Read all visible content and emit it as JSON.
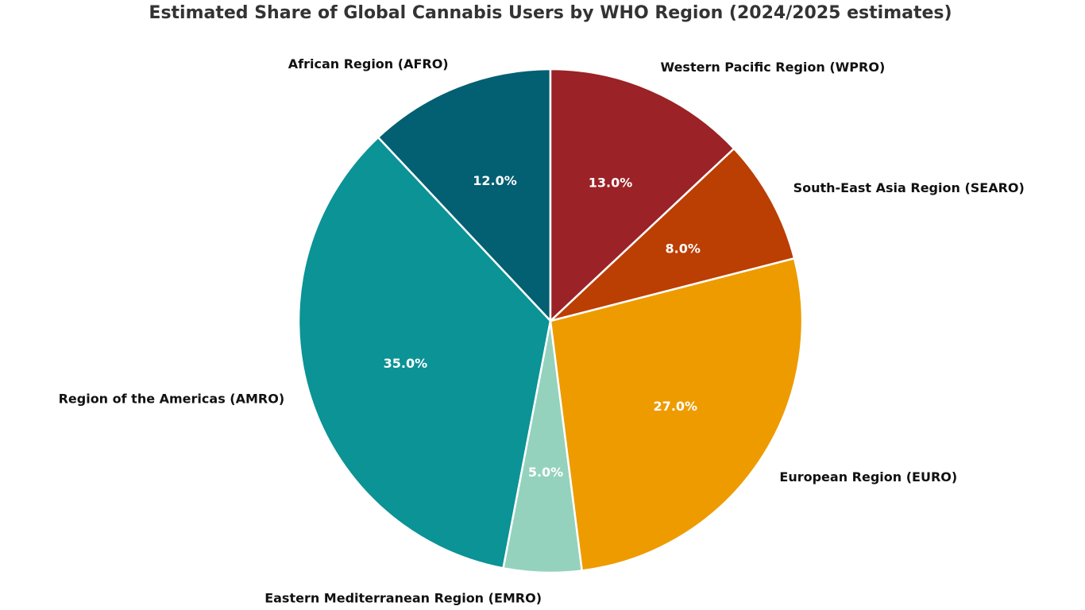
{
  "chart_data": {
    "type": "pie",
    "title": "Estimated Share of Global Cannabis Users by WHO Region (2024/2025 estimates)",
    "start_angle_deg": 90,
    "direction": "counterclockwise",
    "slices": [
      {
        "label": "African Region (AFRO)",
        "value": 12.0,
        "pct_label": "12.0%",
        "color": "#035f72"
      },
      {
        "label": "Region of the Americas (AMRO)",
        "value": 35.0,
        "pct_label": "35.0%",
        "color": "#0b9396"
      },
      {
        "label": "Eastern Mediterranean Region (EMRO)",
        "value": 5.0,
        "pct_label": "5.0%",
        "color": "#94d2bd"
      },
      {
        "label": "European Region (EURO)",
        "value": 27.0,
        "pct_label": "27.0%",
        "color": "#ee9b00"
      },
      {
        "label": "South-East Asia Region (SEARO)",
        "value": 8.0,
        "pct_label": "8.0%",
        "color": "#bb3e03"
      },
      {
        "label": "Western Pacific Region (WPRO)",
        "value": 13.0,
        "pct_label": "13.0%",
        "color": "#9b2226"
      }
    ]
  }
}
